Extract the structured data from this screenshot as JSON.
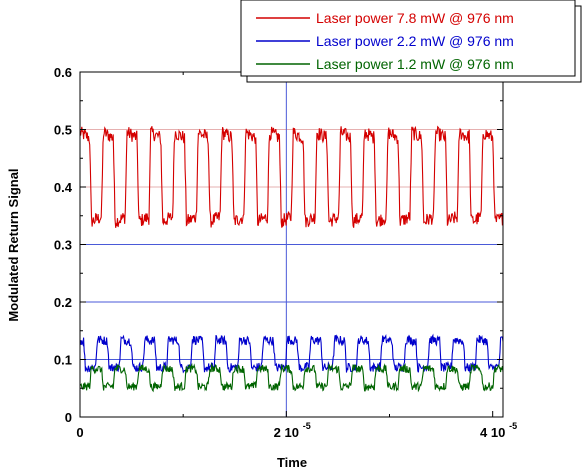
{
  "chart_data": {
    "type": "line",
    "title": "",
    "xlabel": "Time",
    "ylabel": "Modulated Return Signal",
    "xlim": [
      0,
      4.1e-05
    ],
    "ylim": [
      0,
      0.6
    ],
    "grid": "major ticks at y 0.3, 0.2, 0.1 and x 2e-5",
    "legend_position": "top-right",
    "y_ticks": [
      {
        "value": 0,
        "label": "0"
      },
      {
        "value": 0.1,
        "label": "0.1"
      },
      {
        "value": 0.2,
        "label": "0.2"
      },
      {
        "value": 0.3,
        "label": "0.3"
      },
      {
        "value": 0.4,
        "label": "0.4"
      },
      {
        "value": 0.5,
        "label": "0.5"
      },
      {
        "value": 0.6,
        "label": "0.6"
      }
    ],
    "x_ticks": [
      {
        "value": 0,
        "mantissa": "0",
        "exponent": ""
      },
      {
        "value": 2e-05,
        "mantissa": "2 10",
        "exponent": "-5"
      },
      {
        "value": 4e-05,
        "mantissa": "4 10",
        "exponent": "-5"
      }
    ],
    "series": [
      {
        "name": "Laser power 7.8 mW @ 976 nm",
        "color": "#d40000",
        "period": 2.3e-06,
        "low": 0.34,
        "high": 0.495,
        "noise": 0.012,
        "phase": 0.1
      },
      {
        "name": "Laser power 2.2 mW @ 976 nm",
        "color": "#0000cc",
        "period": 2.3e-06,
        "low": 0.085,
        "high": 0.135,
        "noise": 0.008,
        "phase": 0.35
      },
      {
        "name": "Laser power 1.2 mW @ 976 nm",
        "color": "#006400",
        "period": 2.3e-06,
        "low": 0.052,
        "high": 0.085,
        "noise": 0.007,
        "phase": 0.6
      }
    ]
  }
}
